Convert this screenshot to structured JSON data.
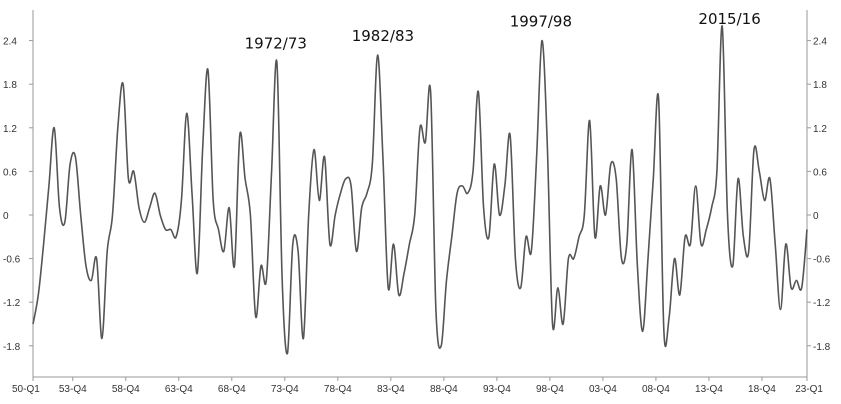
{
  "chart_data": {
    "type": "line",
    "title": "",
    "xlabel": "",
    "ylabel": "",
    "colors": {
      "line": "#555555",
      "axis": "#999999",
      "text": "#333333",
      "annotation": "#111111"
    },
    "grid": false,
    "legend": "none",
    "ylim": [
      -2.0,
      2.7
    ],
    "xlim": [
      1950.0,
      2023.0
    ],
    "y_ticks": [
      "2.4",
      "1.8",
      "1.2",
      "0.6",
      "0",
      "-0.6",
      "-1.2",
      "-1.8"
    ],
    "y_tick_values": [
      2.4,
      1.8,
      1.2,
      0.6,
      0,
      -0.6,
      -1.2,
      -1.8
    ],
    "x_ticks": [
      "50-Q1",
      "53-Q4",
      "58-Q4",
      "63-Q4",
      "68-Q4",
      "73-Q4",
      "78-Q4",
      "83-Q4",
      "88-Q4",
      "93-Q4",
      "98-Q4",
      "03-Q4",
      "08-Q4",
      "13-Q4",
      "18-Q4",
      "23-Q1"
    ],
    "x_tick_values": [
      1950.0,
      1953.75,
      1958.75,
      1963.75,
      1968.75,
      1973.75,
      1978.75,
      1983.75,
      1988.75,
      1993.75,
      1998.75,
      2003.75,
      2008.75,
      2013.75,
      2018.75,
      2023.0
    ],
    "annotations": [
      {
        "text": "1972/73",
        "x": 1972.9,
        "y": 2.1
      },
      {
        "text": "1982/83",
        "x": 1983.0,
        "y": 2.2
      },
      {
        "text": "1997/98",
        "x": 1997.9,
        "y": 2.4
      },
      {
        "text": "2015/16",
        "x": 2015.7,
        "y": 2.6
      }
    ],
    "series": [
      {
        "name": "",
        "x": [
          1950.0,
          1950.5,
          1951.0,
          1951.5,
          1952.0,
          1952.5,
          1953.0,
          1953.5,
          1954.0,
          1954.5,
          1955.0,
          1955.5,
          1956.0,
          1956.5,
          1957.0,
          1957.5,
          1958.0,
          1958.5,
          1959.0,
          1959.5,
          1960.0,
          1960.5,
          1961.0,
          1961.5,
          1962.0,
          1962.5,
          1963.0,
          1963.5,
          1964.0,
          1964.5,
          1965.0,
          1965.5,
          1966.0,
          1966.5,
          1967.0,
          1967.5,
          1968.0,
          1968.5,
          1969.0,
          1969.5,
          1970.0,
          1970.5,
          1971.0,
          1971.5,
          1972.0,
          1972.5,
          1973.0,
          1973.5,
          1974.0,
          1974.5,
          1975.0,
          1975.5,
          1976.0,
          1976.5,
          1977.0,
          1977.5,
          1978.0,
          1978.5,
          1979.0,
          1979.5,
          1980.0,
          1980.5,
          1981.0,
          1981.5,
          1982.0,
          1982.5,
          1983.0,
          1983.5,
          1984.0,
          1984.5,
          1985.0,
          1985.5,
          1986.0,
          1986.5,
          1987.0,
          1987.5,
          1988.0,
          1988.5,
          1989.0,
          1989.5,
          1990.0,
          1990.5,
          1991.0,
          1991.5,
          1992.0,
          1992.5,
          1993.0,
          1993.5,
          1994.0,
          1994.5,
          1995.0,
          1995.5,
          1996.0,
          1996.5,
          1997.0,
          1997.5,
          1998.0,
          1998.5,
          1999.0,
          1999.5,
          2000.0,
          2000.5,
          2001.0,
          2001.5,
          2002.0,
          2002.5,
          2003.0,
          2003.5,
          2004.0,
          2004.5,
          2005.0,
          2005.5,
          2006.0,
          2006.5,
          2007.0,
          2007.5,
          2008.0,
          2008.5,
          2009.0,
          2009.5,
          2010.0,
          2010.5,
          2011.0,
          2011.5,
          2012.0,
          2012.5,
          2013.0,
          2013.5,
          2014.0,
          2014.5,
          2015.0,
          2015.5,
          2016.0,
          2016.5,
          2017.0,
          2017.5,
          2018.0,
          2018.5,
          2019.0,
          2019.5,
          2020.0,
          2020.5,
          2021.0,
          2021.5,
          2022.0,
          2022.5,
          2023.0
        ],
        "y": [
          -1.5,
          -1.1,
          -0.4,
          0.4,
          1.2,
          0.1,
          -0.1,
          0.7,
          0.8,
          0.0,
          -0.7,
          -0.9,
          -0.6,
          -1.7,
          -0.5,
          0.0,
          1.2,
          1.8,
          0.5,
          0.6,
          0.1,
          -0.1,
          0.1,
          0.3,
          0.0,
          -0.2,
          -0.2,
          -0.3,
          0.2,
          1.4,
          0.3,
          -0.8,
          0.9,
          2.0,
          0.2,
          -0.2,
          -0.5,
          0.1,
          -0.7,
          1.1,
          0.5,
          0.0,
          -1.4,
          -0.7,
          -0.9,
          0.6,
          2.1,
          -0.9,
          -1.9,
          -0.4,
          -0.5,
          -1.7,
          0.0,
          0.9,
          0.2,
          0.8,
          -0.4,
          0.0,
          0.3,
          0.5,
          0.4,
          -0.5,
          0.1,
          0.3,
          0.7,
          2.2,
          0.8,
          -1.0,
          -0.4,
          -1.1,
          -0.8,
          -0.4,
          0.0,
          1.2,
          1.0,
          1.7,
          -1.3,
          -1.8,
          -0.9,
          -0.3,
          0.3,
          0.4,
          0.3,
          0.6,
          1.7,
          0.1,
          -0.3,
          0.7,
          0.0,
          0.4,
          1.1,
          -0.6,
          -1.0,
          -0.3,
          -0.5,
          0.8,
          2.4,
          1.0,
          -1.5,
          -1.0,
          -1.5,
          -0.6,
          -0.6,
          -0.3,
          0.0,
          1.3,
          -0.3,
          0.4,
          0.0,
          0.7,
          0.5,
          -0.6,
          -0.4,
          0.9,
          -0.7,
          -1.6,
          -0.6,
          0.5,
          1.6,
          -1.6,
          -1.4,
          -0.6,
          -1.1,
          -0.3,
          -0.4,
          0.4,
          -0.4,
          -0.2,
          0.1,
          0.6,
          2.6,
          0.0,
          -0.7,
          0.5,
          -0.3,
          -0.5,
          0.9,
          0.6,
          0.2,
          0.5,
          -0.4,
          -1.3,
          -0.4,
          -1.0,
          -0.9,
          -1.0,
          -0.2
        ]
      }
    ]
  }
}
